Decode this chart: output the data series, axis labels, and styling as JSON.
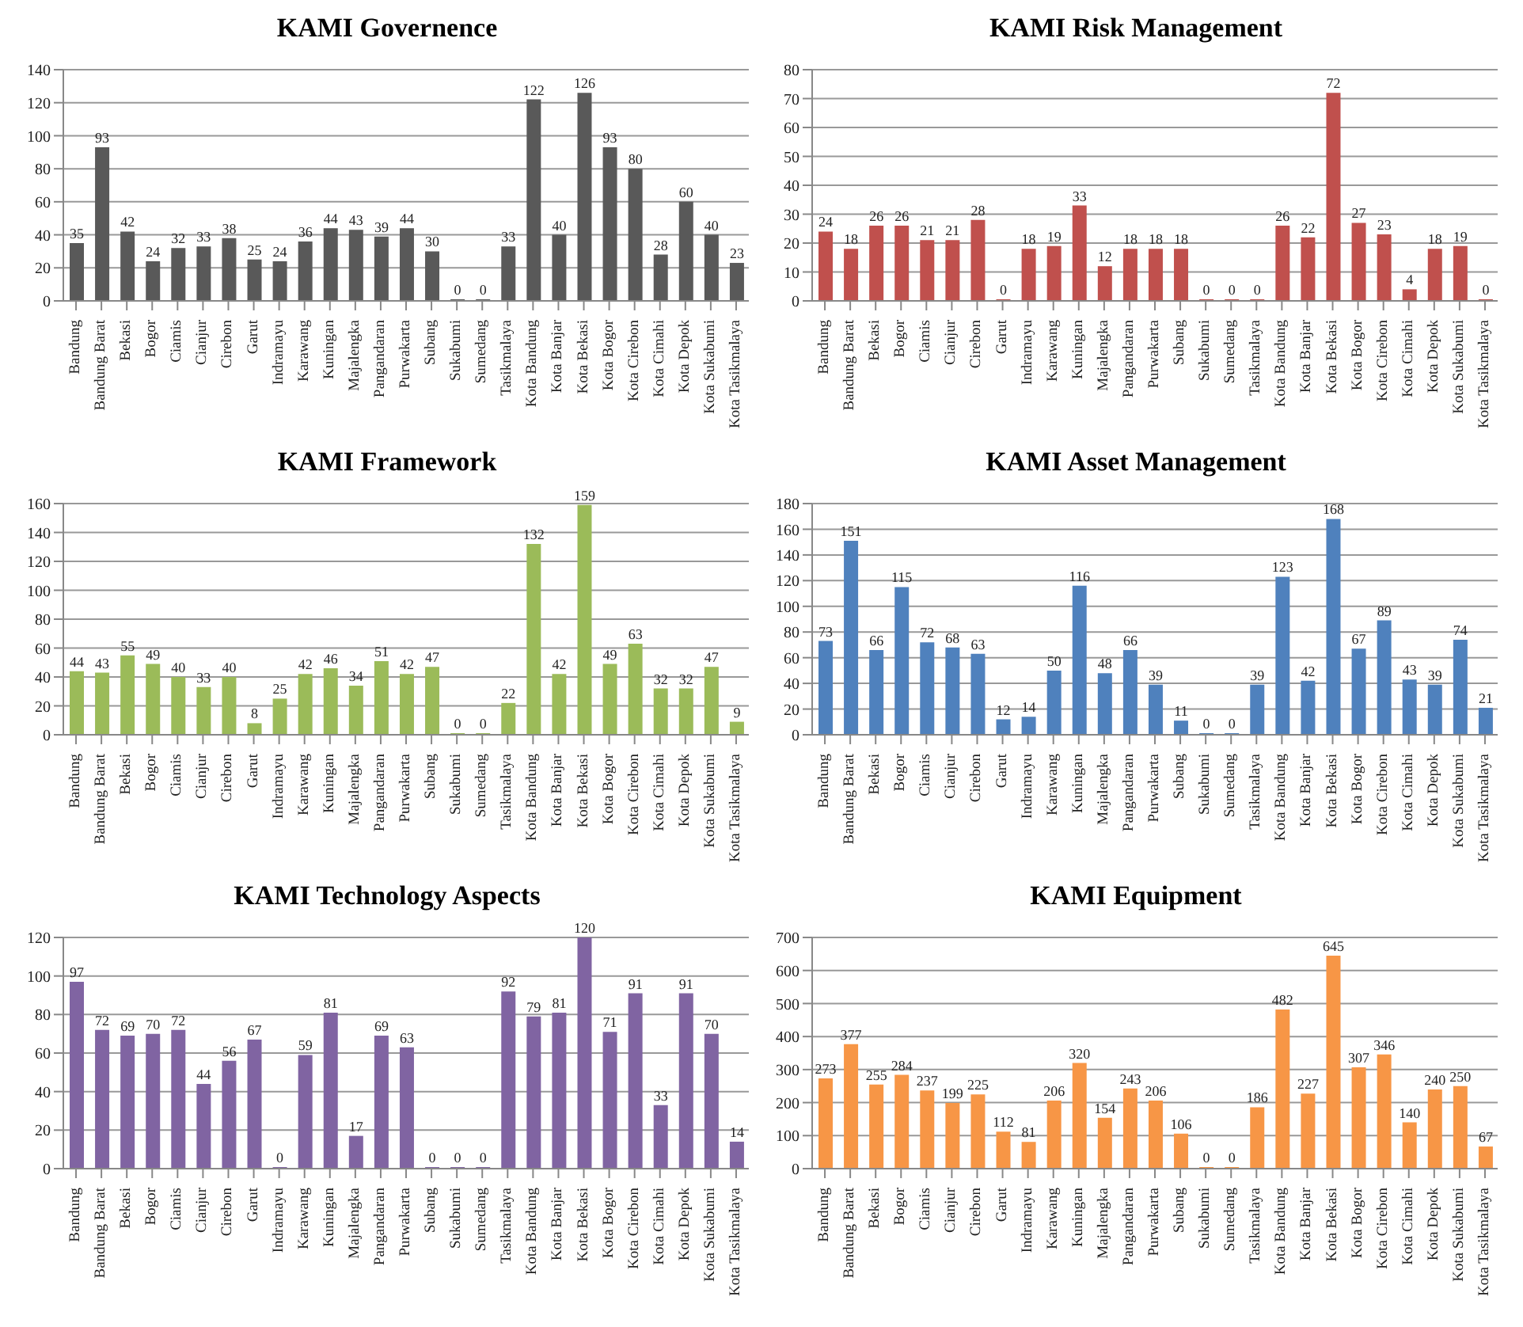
{
  "chart_data": [
    {
      "type": "bar",
      "title": "KAMI Governence",
      "categories": [
        "Bandung",
        "Bandung Barat",
        "Bekasi",
        "Bogor",
        "Ciamis",
        "Cianjur",
        "Cirebon",
        "Garut",
        "Indramayu",
        "Karawang",
        "Kuningan",
        "Majalengka",
        "Pangandaran",
        "Purwakarta",
        "Subang",
        "Sukabumi",
        "Sumedang",
        "Tasikmalaya",
        "Kota Bandung",
        "Kota Banjar",
        "Kota Bekasi",
        "Kota Bogor",
        "Kota Cirebon",
        "Kota Cimahi",
        "Kota Depok",
        "Kota Sukabumi",
        "Kota Tasikmalaya"
      ],
      "values": [
        35,
        93,
        42,
        24,
        32,
        33,
        38,
        25,
        24,
        36,
        44,
        43,
        39,
        44,
        30,
        0,
        0,
        33,
        122,
        40,
        126,
        93,
        80,
        28,
        60,
        40,
        23
      ],
      "color": "#595959",
      "ylim": [
        0,
        140
      ],
      "yticks": [
        0,
        20,
        40,
        60,
        80,
        100,
        120,
        140
      ],
      "grid": "y",
      "data_labels": true
    },
    {
      "type": "bar",
      "title": "KAMI Risk Management",
      "categories": [
        "Bandung",
        "Bandung Barat",
        "Bekasi",
        "Bogor",
        "Ciamis",
        "Cianjur",
        "Cirebon",
        "Garut",
        "Indramayu",
        "Karawang",
        "Kuningan",
        "Majalengka",
        "Pangandaran",
        "Purwakarta",
        "Subang",
        "Sukabumi",
        "Sumedang",
        "Tasikmalaya",
        "Kota Bandung",
        "Kota Banjar",
        "Kota Bekasi",
        "Kota Bogor",
        "Kota Cirebon",
        "Kota Cimahi",
        "Kota Depok",
        "Kota Sukabumi",
        "Kota Tasikmalaya"
      ],
      "values": [
        24,
        18,
        26,
        26,
        21,
        21,
        28,
        0,
        18,
        19,
        33,
        12,
        18,
        18,
        18,
        0,
        0,
        0,
        26,
        22,
        72,
        27,
        23,
        4,
        18,
        19,
        0
      ],
      "color": "#c0504d",
      "ylim": [
        0,
        80
      ],
      "yticks": [
        0,
        10,
        20,
        30,
        40,
        50,
        60,
        70,
        80
      ],
      "grid": "y",
      "data_labels": true
    },
    {
      "type": "bar",
      "title": "KAMI Framework",
      "categories": [
        "Bandung",
        "Bandung Barat",
        "Bekasi",
        "Bogor",
        "Ciamis",
        "Cianjur",
        "Cirebon",
        "Garut",
        "Indramayu",
        "Karawang",
        "Kuningan",
        "Majalengka",
        "Pangandaran",
        "Purwakarta",
        "Subang",
        "Sukabumi",
        "Sumedang",
        "Tasikmalaya",
        "Kota Bandung",
        "Kota Banjar",
        "Kota Bekasi",
        "Kota Bogor",
        "Kota Cirebon",
        "Kota Cimahi",
        "Kota Depok",
        "Kota Sukabumi",
        "Kota Tasikmalaya"
      ],
      "values": [
        44,
        43,
        55,
        49,
        40,
        33,
        40,
        8,
        25,
        42,
        46,
        34,
        51,
        42,
        47,
        0,
        0,
        22,
        132,
        42,
        159,
        49,
        63,
        32,
        32,
        47,
        9
      ],
      "color": "#9bbb59",
      "ylim": [
        0,
        160
      ],
      "yticks": [
        0,
        20,
        40,
        60,
        80,
        100,
        120,
        140,
        160
      ],
      "grid": "y",
      "data_labels": true
    },
    {
      "type": "bar",
      "title": "KAMI Asset Management",
      "categories": [
        "Bandung",
        "Bandung Barat",
        "Bekasi",
        "Bogor",
        "Ciamis",
        "Cianjur",
        "Cirebon",
        "Garut",
        "Indramayu",
        "Karawang",
        "Kuningan",
        "Majalengka",
        "Pangandaran",
        "Purwakarta",
        "Subang",
        "Sukabumi",
        "Sumedang",
        "Tasikmalaya",
        "Kota Bandung",
        "Kota Banjar",
        "Kota Bekasi",
        "Kota Bogor",
        "Kota Cirebon",
        "Kota Cimahi",
        "Kota Depok",
        "Kota Sukabumi",
        "Kota Tasikmalaya"
      ],
      "values": [
        73,
        151,
        66,
        115,
        72,
        68,
        63,
        12,
        14,
        50,
        116,
        48,
        66,
        39,
        11,
        0,
        0,
        39,
        123,
        42,
        168,
        67,
        89,
        43,
        39,
        74,
        21
      ],
      "color": "#4f81bd",
      "ylim": [
        0,
        180
      ],
      "yticks": [
        0,
        20,
        40,
        60,
        80,
        100,
        120,
        140,
        160,
        180
      ],
      "grid": "y",
      "data_labels": true
    },
    {
      "type": "bar",
      "title": "KAMI Technology Aspects",
      "categories": [
        "Bandung",
        "Bandung Barat",
        "Bekasi",
        "Bogor",
        "Ciamis",
        "Cianjur",
        "Cirebon",
        "Garut",
        "Indramayu",
        "Karawang",
        "Kuningan",
        "Majalengka",
        "Pangandaran",
        "Purwakarta",
        "Subang",
        "Sukabumi",
        "Sumedang",
        "Tasikmalaya",
        "Kota Bandung",
        "Kota Banjar",
        "Kota Bekasi",
        "Kota Bogor",
        "Kota Cirebon",
        "Kota Cimahi",
        "Kota Depok",
        "Kota Sukabumi",
        "Kota Tasikmalaya"
      ],
      "values": [
        97,
        72,
        69,
        70,
        72,
        44,
        56,
        67,
        0,
        59,
        81,
        17,
        69,
        63,
        0,
        0,
        0,
        92,
        79,
        81,
        120,
        71,
        91,
        33,
        91,
        70,
        14
      ],
      "color": "#8064a2",
      "ylim": [
        0,
        120
      ],
      "yticks": [
        0,
        20,
        40,
        60,
        80,
        100,
        120
      ],
      "grid": "y",
      "data_labels": true
    },
    {
      "type": "bar",
      "title": "KAMI Equipment",
      "categories": [
        "Bandung",
        "Bandung Barat",
        "Bekasi",
        "Bogor",
        "Ciamis",
        "Cianjur",
        "Cirebon",
        "Garut",
        "Indramayu",
        "Karawang",
        "Kuningan",
        "Majalengka",
        "Pangandaran",
        "Purwakarta",
        "Subang",
        "Sukabumi",
        "Sumedang",
        "Tasikmalaya",
        "Kota Bandung",
        "Kota Banjar",
        "Kota Bekasi",
        "Kota Bogor",
        "Kota Cirebon",
        "Kota Cimahi",
        "Kota Depok",
        "Kota Sukabumi",
        "Kota Tasikmalaya"
      ],
      "values": [
        273,
        377,
        255,
        284,
        237,
        199,
        225,
        112,
        81,
        206,
        320,
        154,
        243,
        206,
        106,
        0,
        0,
        186,
        482,
        227,
        645,
        307,
        346,
        140,
        240,
        250,
        67
      ],
      "color": "#f79646",
      "ylim": [
        0,
        700
      ],
      "yticks": [
        0,
        100,
        200,
        300,
        400,
        500,
        600,
        700
      ],
      "grid": "y",
      "data_labels": true
    }
  ]
}
